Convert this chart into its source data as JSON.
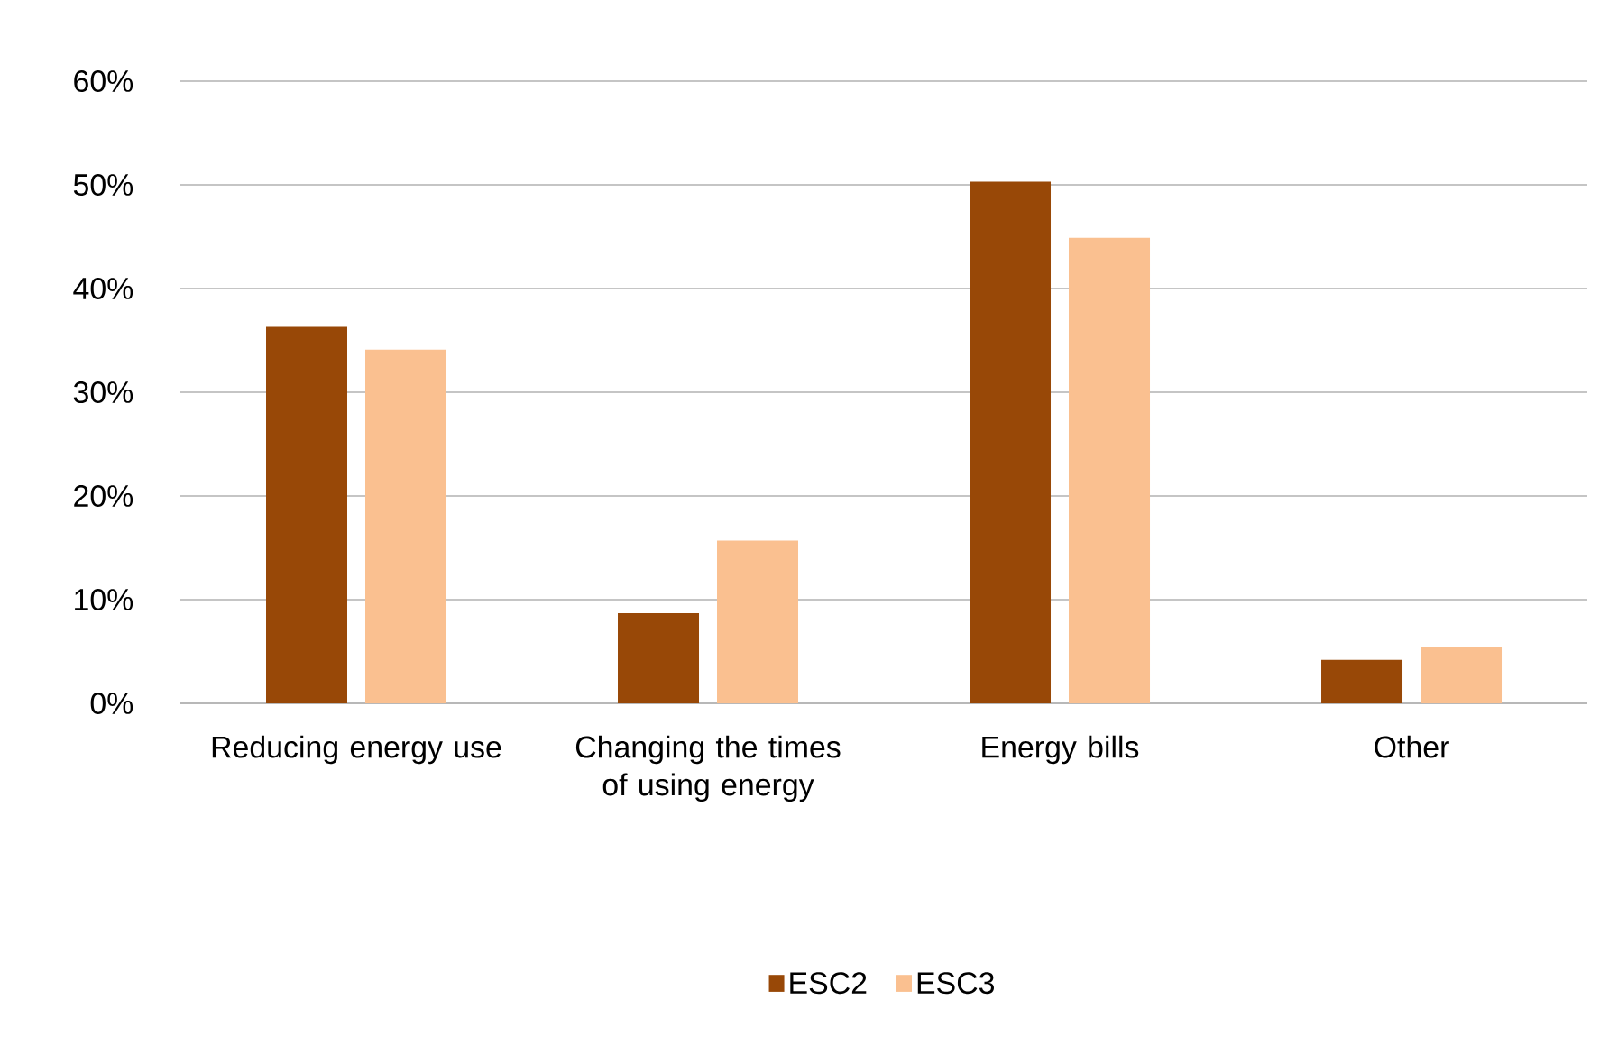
{
  "chart_data": {
    "type": "bar",
    "categories": [
      "Reducing energy use",
      "Changing the times of using energy",
      "Energy bills",
      "Other"
    ],
    "series": [
      {
        "name": "ESC2",
        "color": "#984807",
        "values": [
          36.3,
          8.7,
          50.3,
          4.2
        ]
      },
      {
        "name": "ESC3",
        "color": "#fac090",
        "values": [
          34.1,
          15.7,
          44.9,
          5.4
        ]
      }
    ],
    "ylim": [
      0,
      60
    ],
    "yticks": [
      {
        "value": 0,
        "label": "0%"
      },
      {
        "value": 10,
        "label": "10%"
      },
      {
        "value": 20,
        "label": "20%"
      },
      {
        "value": 30,
        "label": "30%"
      },
      {
        "value": 40,
        "label": "40%"
      },
      {
        "value": 50,
        "label": "50%"
      },
      {
        "value": 60,
        "label": "60%"
      }
    ],
    "grid": "y",
    "legend": "bottom"
  }
}
